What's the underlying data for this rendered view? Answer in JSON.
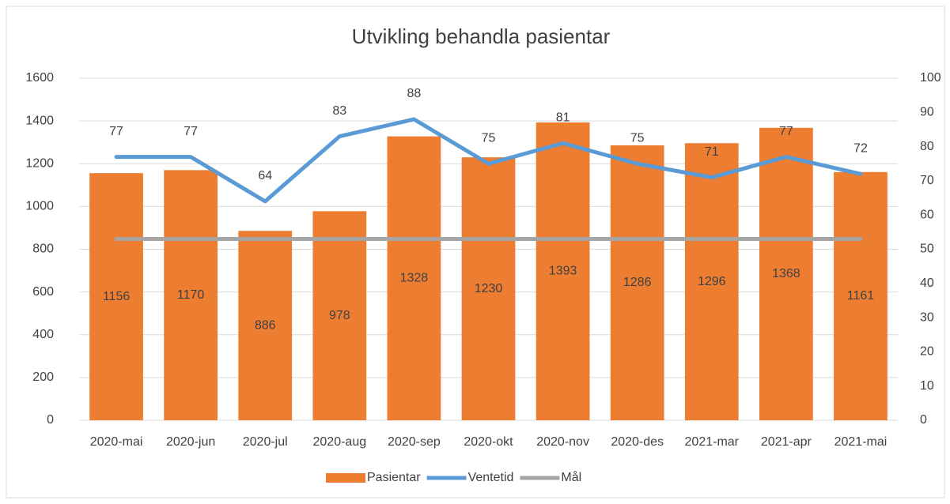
{
  "chart_data": {
    "type": "bar",
    "title": "Utvikling behandla pasientar",
    "categories": [
      "2020-mai",
      "2020-jun",
      "2020-jul",
      "2020-aug",
      "2020-sep",
      "2020-okt",
      "2020-nov",
      "2020-des",
      "2021-mar",
      "2021-apr",
      "2021-mai"
    ],
    "series": [
      {
        "name": "Pasientar",
        "type": "bar",
        "color": "#ed7d31",
        "values": [
          1156,
          1170,
          886,
          978,
          1328,
          1230,
          1393,
          1286,
          1296,
          1368,
          1161
        ]
      },
      {
        "name": "Ventetid",
        "type": "line",
        "axis": "y2",
        "color": "#5b9bd5",
        "values": [
          77,
          77,
          64,
          83,
          88,
          75,
          81,
          75,
          71,
          77,
          72
        ]
      },
      {
        "name": "Mål",
        "type": "line",
        "axis": "y2",
        "color": "#a5a5a5",
        "values": [
          53,
          53,
          53,
          53,
          53,
          53,
          53,
          53,
          53,
          53,
          53
        ]
      }
    ],
    "data_labels": [
      "Pasientar",
      "Ventetid"
    ],
    "ylim": [
      0,
      1600
    ],
    "yticks": [
      0,
      200,
      400,
      600,
      800,
      1000,
      1200,
      1400,
      1600
    ],
    "y2lim": [
      0,
      100
    ],
    "y2ticks": [
      0,
      10,
      20,
      30,
      40,
      50,
      60,
      70,
      80,
      90,
      100
    ],
    "grid": true,
    "legend": "bottom"
  }
}
